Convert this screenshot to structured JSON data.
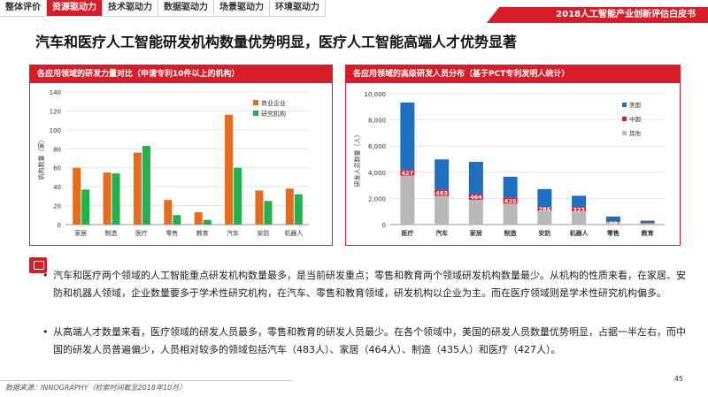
{
  "tabs": [
    "整体评价",
    "资源驱动力",
    "技术驱动力",
    "数据驱动力",
    "场景驱动力",
    "环境驱动力"
  ],
  "active_tab": 1,
  "banner": "2018人工智能产业创新评估白皮书",
  "title": "汽车和医疗人工智能研发机构数量优势明显，医疗人工智能高端人才优势显著",
  "left_panel_title": "各应用领域的研发力量对比（申请专利10件以上的机构）",
  "right_panel_title": "各应用领域的高级研发人员分布（基于PCT专利发明人统计）",
  "colors": {
    "brand": "#d71c2a",
    "orange": "#e36c1d",
    "green": "#22b14c",
    "blue": "#1f6fc1",
    "red": "#e21f26",
    "gray": "#b8b8b8"
  },
  "chart_data": [
    {
      "type": "bar",
      "title": "各应用领域的研发力量对比（申请专利10件以上的机构）",
      "ylabel": "机构数量（家）",
      "xlabel": "",
      "ylim": [
        0,
        140
      ],
      "yticks": [
        0,
        20,
        40,
        60,
        80,
        100,
        120,
        140
      ],
      "categories": [
        "家居",
        "制造",
        "医疗",
        "零售",
        "教育",
        "汽车",
        "安防",
        "机器人"
      ],
      "series": [
        {
          "name": "商业企业",
          "color": "#e36c1d",
          "values": [
            60,
            55,
            76,
            26,
            13,
            116,
            36,
            38
          ]
        },
        {
          "name": "研究机构",
          "color": "#22b14c",
          "values": [
            37,
            54,
            83,
            10,
            5,
            60,
            25,
            32
          ]
        }
      ],
      "legend": "top-right",
      "grid": true
    },
    {
      "type": "bar",
      "stacked": true,
      "title": "各应用领域的高级研发人员分布（基于PCT专利发明人统计）",
      "ylabel": "研发人员数量（人）",
      "xlabel": "",
      "ylim": [
        0,
        10000
      ],
      "yticks": [
        "0",
        "2,000",
        "4,000",
        "6,000",
        "8,000",
        "10,000"
      ],
      "categories": [
        "医疗",
        "汽车",
        "家居",
        "制造",
        "安防",
        "机器人",
        "零售",
        "教育"
      ],
      "series": [
        {
          "name": "其他",
          "color": "#b8b8b8",
          "values": [
            3750,
            2200,
            1900,
            1600,
            1050,
            1000,
            190,
            100
          ]
        },
        {
          "name": "中国",
          "color": "#e21f26",
          "values": [
            427,
            483,
            464,
            435,
            286,
            323,
            48,
            30
          ]
        },
        {
          "name": "美国",
          "color": "#1f6fc1",
          "values": [
            5150,
            2300,
            2430,
            1620,
            1380,
            880,
            380,
            170
          ]
        }
      ],
      "data_labels_series": "中国",
      "data_labels": [
        "427",
        "483",
        "464",
        "435",
        "286",
        "323",
        "48",
        ""
      ],
      "legend": "top-right",
      "grid": true
    }
  ],
  "bullets": [
    "汽车和医疗两个领域的人工智能重点研发机构数量最多，是当前研发重点；零售和教育两个领域研发机构数量最少。从机构的性质来看，在家居、安防和机器人领域，企业数量要多于学术性研究机构，在汽车、零售和教育领域，研发机构以企业为主。而在医疗领域则是学术性研究机构偏多。",
    "从高端人才数量来看，医疗领域的研发人员最多，零售和教育的研发人员最少。在各个领域中，美国的研发人员数量优势明显，占据一半左右，而中国的研发人员普遍偏少，人员相对较多的领域包括汽车（483人）、家居（464人）、制造（435人）和医疗（427人）。"
  ],
  "source": "数据来源：INNOGRAPHY（检索时间截至2018年10月）",
  "page_number": "45"
}
